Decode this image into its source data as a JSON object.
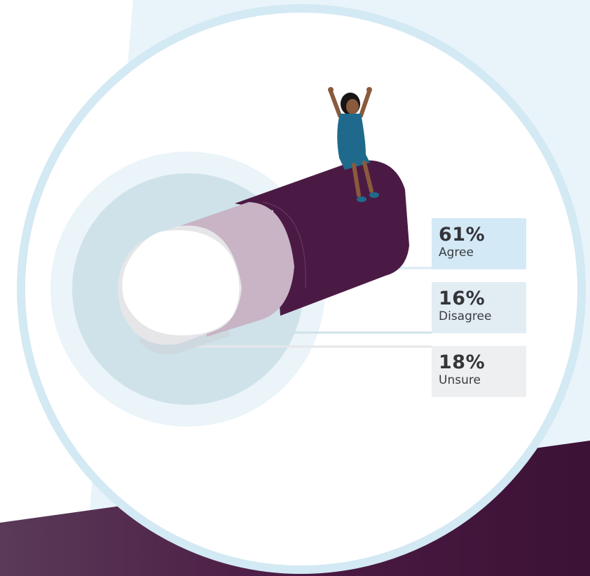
{
  "chart_data": {
    "type": "bar",
    "categories": [
      "Agree",
      "Disagree",
      "Unsure"
    ],
    "values": [
      61,
      16,
      18
    ],
    "value_labels": [
      "61%",
      "16%",
      "18%"
    ],
    "unit": "%",
    "colors": {
      "agree": "#4b1a44",
      "disagree": "#c8b4c5",
      "unsure": "#e6e6e8"
    },
    "box_colors": [
      "#d4e9f6",
      "#e2edf3",
      "#eeeff0"
    ]
  },
  "theme": {
    "page_bg": "#e8f4fa",
    "ring": "#d3e9f3",
    "footer": "#4b1a44",
    "person_dress": "#1f6a8c",
    "person_skin": "#8a5a3c",
    "person_hair": "#1a1417"
  },
  "icons": {
    "illustration": "person-sitting-cheering-icon"
  }
}
